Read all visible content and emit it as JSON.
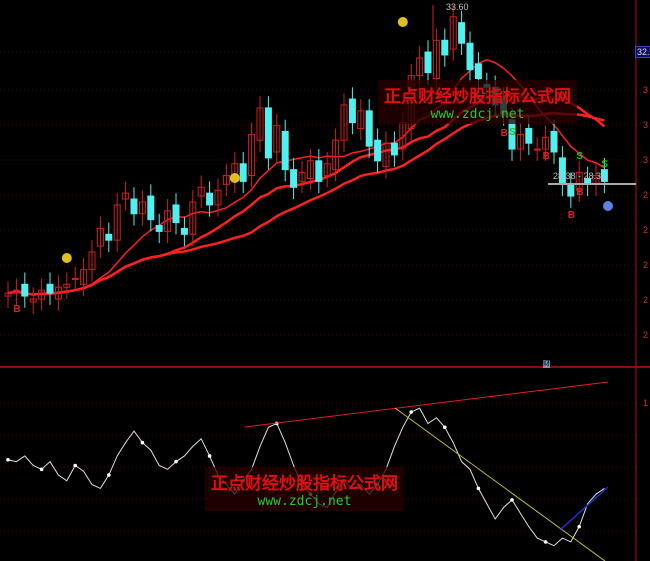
{
  "watermark": {
    "title": "正点财经炒股指标公式网",
    "url": "www.zdcj.net"
  },
  "annotations": {
    "high_label": "33.60",
    "range_label": "28.38 - 28.31",
    "current_price": "32.0",
    "info_icon_label": "财"
  },
  "price_axis": {
    "labels": [
      "3",
      "3",
      "3",
      "2",
      "2",
      "2",
      "2",
      "2",
      "2"
    ]
  },
  "indicator_axis": {
    "labels": [
      "1"
    ]
  },
  "signals": {
    "buy": "B",
    "sell": "S"
  },
  "colors": {
    "up": "#d02020",
    "down": "#50f0f0",
    "ma": "#ff2020",
    "grid": "#5a0000",
    "axis": "#c01010",
    "osc": "#e0e0e0",
    "trend_yellow": "#c0c040",
    "trend_blue": "#2030d0"
  },
  "chart_data": {
    "type": "candlestick",
    "closes": [
      23.8,
      23.9,
      23.7,
      23.6,
      23.9,
      23.8,
      24.0,
      24.1,
      24.3,
      24.6,
      25.2,
      26.0,
      25.6,
      26.8,
      27.2,
      26.5,
      26.9,
      26.3,
      25.9,
      26.6,
      26.2,
      25.8,
      26.9,
      27.4,
      26.8,
      27.3,
      27.8,
      28.2,
      27.6,
      29.2,
      30.1,
      28.4,
      29.5,
      28.0,
      27.4,
      27.9,
      28.3,
      27.6,
      28.2,
      29.0,
      30.2,
      29.6,
      30.0,
      28.8,
      28.3,
      28.9,
      28.5,
      29.6,
      31.2,
      31.8,
      31.3,
      32.4,
      31.9,
      33.2,
      32.3,
      31.4,
      31.1,
      30.8,
      30.2,
      29.9,
      28.7,
      29.2,
      28.9,
      28.7,
      29.1,
      28.6,
      27.5,
      27.1,
      27.9,
      27.5,
      27.8,
      27.6
    ],
    "oscillator": [
      53,
      52,
      55,
      50,
      48,
      52,
      45,
      42,
      50,
      47,
      40,
      38,
      45,
      55,
      62,
      68,
      62,
      58,
      50,
      48,
      52,
      55,
      60,
      64,
      55,
      45,
      40,
      35,
      42,
      48,
      60,
      70,
      72,
      62,
      50,
      40,
      35,
      30,
      28,
      36,
      42,
      38,
      40,
      35,
      40,
      48,
      60,
      70,
      78,
      80,
      72,
      75,
      70,
      62,
      52,
      48,
      38,
      30,
      22,
      28,
      32,
      25,
      18,
      12,
      10,
      8,
      12,
      10,
      18,
      30,
      35,
      38
    ],
    "high": 33.6,
    "buy_signals": [
      1,
      59,
      64,
      67,
      68
    ],
    "sell_signals": [
      60,
      68,
      71
    ]
  }
}
